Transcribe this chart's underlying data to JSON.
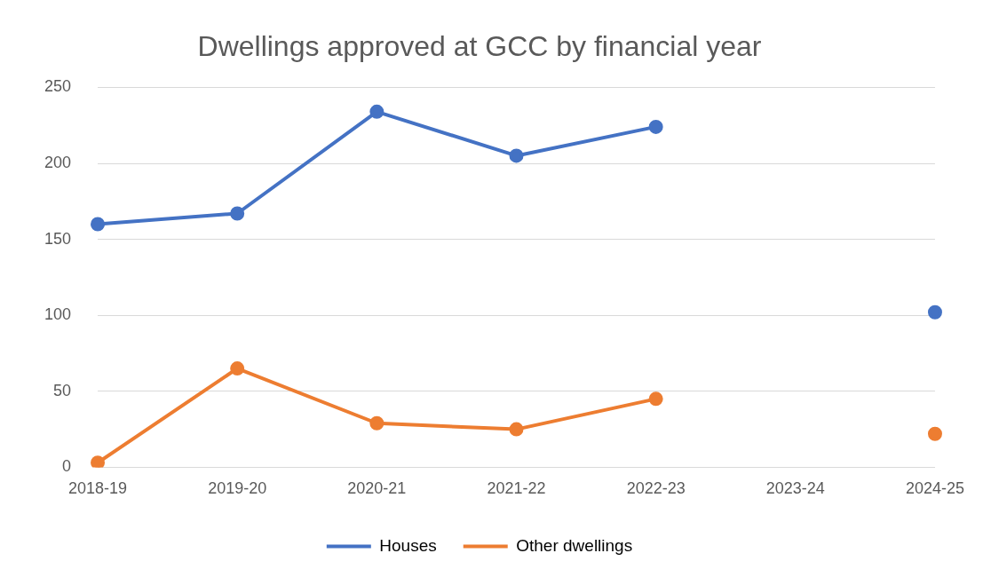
{
  "chart_data": {
    "type": "line",
    "title": "Dwellings approved at GCC by financial year",
    "categories": [
      "2018-19",
      "2019-20",
      "2020-21",
      "2021-22",
      "2022-23",
      "2023-24",
      "2024-25"
    ],
    "series": [
      {
        "name": "Houses",
        "color": "#4472c4",
        "values": [
          160,
          167,
          234,
          205,
          224,
          null,
          102
        ]
      },
      {
        "name": "Other dwellings",
        "color": "#ed7d31",
        "values": [
          3,
          65,
          29,
          25,
          45,
          null,
          22
        ]
      }
    ],
    "ylim": [
      0,
      250
    ],
    "yticks": [
      0,
      50,
      100,
      150,
      200,
      250
    ],
    "grid": "y",
    "legend": "bottom",
    "marker": "circle",
    "line_style": "solid"
  }
}
